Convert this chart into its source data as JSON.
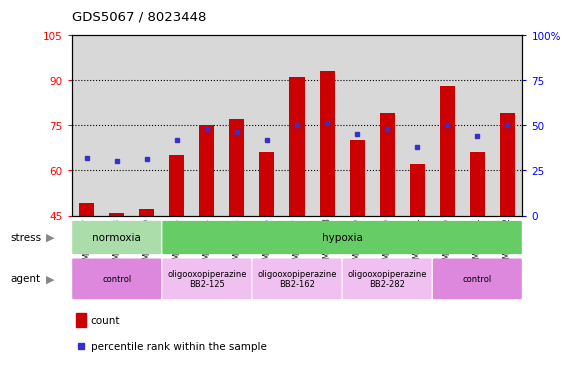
{
  "title": "GDS5067 / 8023448",
  "samples": [
    "GSM1169207",
    "GSM1169208",
    "GSM1169209",
    "GSM1169213",
    "GSM1169214",
    "GSM1169215",
    "GSM1169216",
    "GSM1169217",
    "GSM1169218",
    "GSM1169219",
    "GSM1169220",
    "GSM1169221",
    "GSM1169210",
    "GSM1169211",
    "GSM1169212"
  ],
  "counts": [
    49,
    46,
    47,
    65,
    75,
    77,
    66,
    91,
    93,
    70,
    79,
    62,
    88,
    66,
    79
  ],
  "percentile_ranks": [
    32,
    30,
    31,
    42,
    48,
    46,
    42,
    50,
    51,
    45,
    48,
    38,
    50,
    44,
    50
  ],
  "ylim_left": [
    45,
    105
  ],
  "ylim_right": [
    0,
    100
  ],
  "left_yticks": [
    45,
    60,
    75,
    90,
    105
  ],
  "right_yticks": [
    0,
    25,
    50,
    75,
    100
  ],
  "bar_color": "#cc0000",
  "dot_color": "#3333cc",
  "bar_bottom": 45,
  "stress_groups": [
    {
      "label": "normoxia",
      "start": 0,
      "end": 3,
      "color": "#aaddaa"
    },
    {
      "label": "hypoxia",
      "start": 3,
      "end": 15,
      "color": "#66cc66"
    }
  ],
  "agent_groups": [
    {
      "label": "control",
      "start": 0,
      "end": 3,
      "color": "#dd88dd"
    },
    {
      "label": "oligooxopiperazine\nBB2-125",
      "start": 3,
      "end": 6,
      "color": "#f0c0f0"
    },
    {
      "label": "oligooxopiperazine\nBB2-162",
      "start": 6,
      "end": 9,
      "color": "#f0c0f0"
    },
    {
      "label": "oligooxopiperazine\nBB2-282",
      "start": 9,
      "end": 12,
      "color": "#f0c0f0"
    },
    {
      "label": "control",
      "start": 12,
      "end": 15,
      "color": "#dd88dd"
    }
  ],
  "col_bg": "#d8d8d8",
  "plot_bg": "white"
}
